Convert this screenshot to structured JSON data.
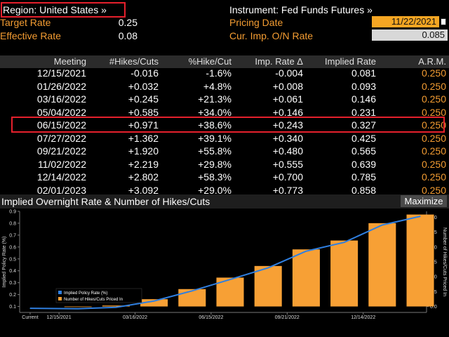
{
  "header": {
    "region_label": "Region: United States »",
    "instrument_label": "Instrument: Fed Funds Futures »",
    "target_rate_label": "Target Rate",
    "target_rate_value": "0.25",
    "effective_rate_label": "Effective Rate",
    "effective_rate_value": "0.08",
    "pricing_date_label": "Pricing Date",
    "pricing_date_value": "11/22/2021",
    "cur_imp_label": "Cur. Imp. O/N Rate",
    "cur_imp_value": "0.085"
  },
  "table": {
    "columns": [
      "Meeting",
      "#Hikes/Cuts",
      "%Hike/Cut",
      "Imp. Rate Δ",
      "Implied Rate",
      "A.R.M."
    ],
    "rows": [
      [
        "12/15/2021",
        "-0.016",
        "-1.6%",
        "-0.004",
        "0.081",
        "0.250"
      ],
      [
        "01/26/2022",
        "+0.032",
        "+4.8%",
        "+0.008",
        "0.093",
        "0.250"
      ],
      [
        "03/16/2022",
        "+0.245",
        "+21.3%",
        "+0.061",
        "0.146",
        "0.250"
      ],
      [
        "05/04/2022",
        "+0.585",
        "+34.0%",
        "+0.146",
        "0.231",
        "0.250"
      ],
      [
        "06/15/2022",
        "+0.971",
        "+38.6%",
        "+0.243",
        "0.327",
        "0.250"
      ],
      [
        "07/27/2022",
        "+1.362",
        "+39.1%",
        "+0.340",
        "0.425",
        "0.250"
      ],
      [
        "09/21/2022",
        "+1.920",
        "+55.8%",
        "+0.480",
        "0.565",
        "0.250"
      ],
      [
        "11/02/2022",
        "+2.219",
        "+29.8%",
        "+0.555",
        "0.639",
        "0.250"
      ],
      [
        "12/14/2022",
        "+2.802",
        "+58.3%",
        "+0.700",
        "0.785",
        "0.250"
      ],
      [
        "02/01/2023",
        "+3.092",
        "+29.0%",
        "+0.773",
        "0.858",
        "0.250"
      ]
    ]
  },
  "chart_panel": {
    "title": "Implied Overnight Rate & Number of Hikes/Cuts",
    "maximize_label": "Maximize"
  },
  "colors": {
    "accent_orange": "#f39c32",
    "bar_orange": "#f7a035",
    "line_blue": "#2f7fe0",
    "highlight_red": "#e5202c"
  },
  "chart_data": {
    "type": "bar",
    "categories": [
      "Current",
      "12/15/2021",
      "01/26/2022",
      "03/16/2022",
      "05/04/2022",
      "06/15/2022",
      "07/27/2022",
      "09/21/2022",
      "11/02/2022",
      "12/14/2022",
      "02/01/2023"
    ],
    "x_tick_labels": [
      "Current",
      "12/15/2021",
      "03/16/2022",
      "06/15/2022",
      "09/21/2022",
      "12/14/2022"
    ],
    "series": [
      {
        "name": "Implied Policy Rate (%)",
        "type": "line",
        "axis": "left",
        "values": [
          0.085,
          0.081,
          0.093,
          0.146,
          0.231,
          0.327,
          0.425,
          0.565,
          0.639,
          0.785,
          0.858
        ]
      },
      {
        "name": "Number of Hikes/Cuts Priced In",
        "type": "bar",
        "axis": "right",
        "values": [
          0,
          -0.016,
          0.032,
          0.245,
          0.585,
          0.971,
          1.362,
          1.92,
          2.219,
          2.802,
          3.092
        ]
      }
    ],
    "ylabel_left": "Implied Policy Rate (%)",
    "ylabel_right": "Number of Hikes/Cuts Priced In",
    "ylim_left": [
      0.05,
      0.9
    ],
    "ylim_right": [
      -0.2,
      3.2
    ],
    "yticks_left": [
      "0.1",
      "0.2",
      "0.3",
      "0.4",
      "0.5",
      "0.6",
      "0.7",
      "0.8",
      "0.9"
    ],
    "yticks_right": [
      "0.0",
      "0.5",
      "1.0",
      "1.5",
      "2.0",
      "2.5",
      "3.0"
    ],
    "legend_position": "bottom-left",
    "grid": false
  }
}
